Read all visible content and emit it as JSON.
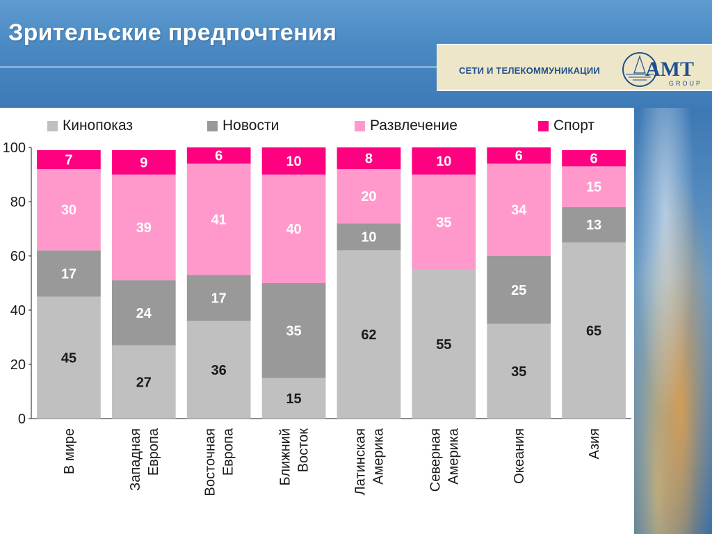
{
  "slide": {
    "title": "Зрительские предпочтения",
    "brand_text": "СЕТИ И ТЕЛЕКОММУНИКАЦИИ",
    "logo_text": "AMT",
    "logo_subtext": "GROUP"
  },
  "colors": {
    "kinopokaz": "#c0c0c0",
    "novosti": "#999999",
    "razvlechenie": "#ff99cc",
    "sport": "#ff0080",
    "value_dark": "#1a1a1a",
    "value_light": "#ffffff"
  },
  "chart_data": {
    "type": "bar",
    "stacked": true,
    "categories": [
      [
        "В мире"
      ],
      [
        "Западная",
        "Европа"
      ],
      [
        "Восточная",
        "Европа"
      ],
      [
        "Ближний",
        "Восток"
      ],
      [
        "Латинская",
        "Америка"
      ],
      [
        "Северная",
        "Америка"
      ],
      [
        "Океания"
      ],
      [
        "Азия"
      ]
    ],
    "series": [
      {
        "name": "Кинопоказ",
        "color": "#c0c0c0",
        "label_color": "#1a1a1a",
        "values": [
          45,
          27,
          36,
          15,
          62,
          55,
          35,
          65
        ]
      },
      {
        "name": "Новости",
        "color": "#999999",
        "label_color": "#ffffff",
        "values": [
          17,
          24,
          17,
          35,
          10,
          null,
          25,
          13
        ]
      },
      {
        "name": "Развлечение",
        "color": "#ff99cc",
        "label_color": "#ffffff",
        "values": [
          30,
          39,
          41,
          40,
          20,
          35,
          34,
          15
        ]
      },
      {
        "name": "Спорт",
        "color": "#ff0080",
        "label_color": "#ffffff",
        "values": [
          7,
          9,
          6,
          10,
          8,
          10,
          6,
          6
        ]
      }
    ],
    "ylim": [
      0,
      100
    ],
    "yticks": [
      0,
      20,
      40,
      60,
      80,
      100
    ],
    "grid": false,
    "legend_position": "top",
    "title": "",
    "xlabel": "",
    "ylabel": ""
  }
}
